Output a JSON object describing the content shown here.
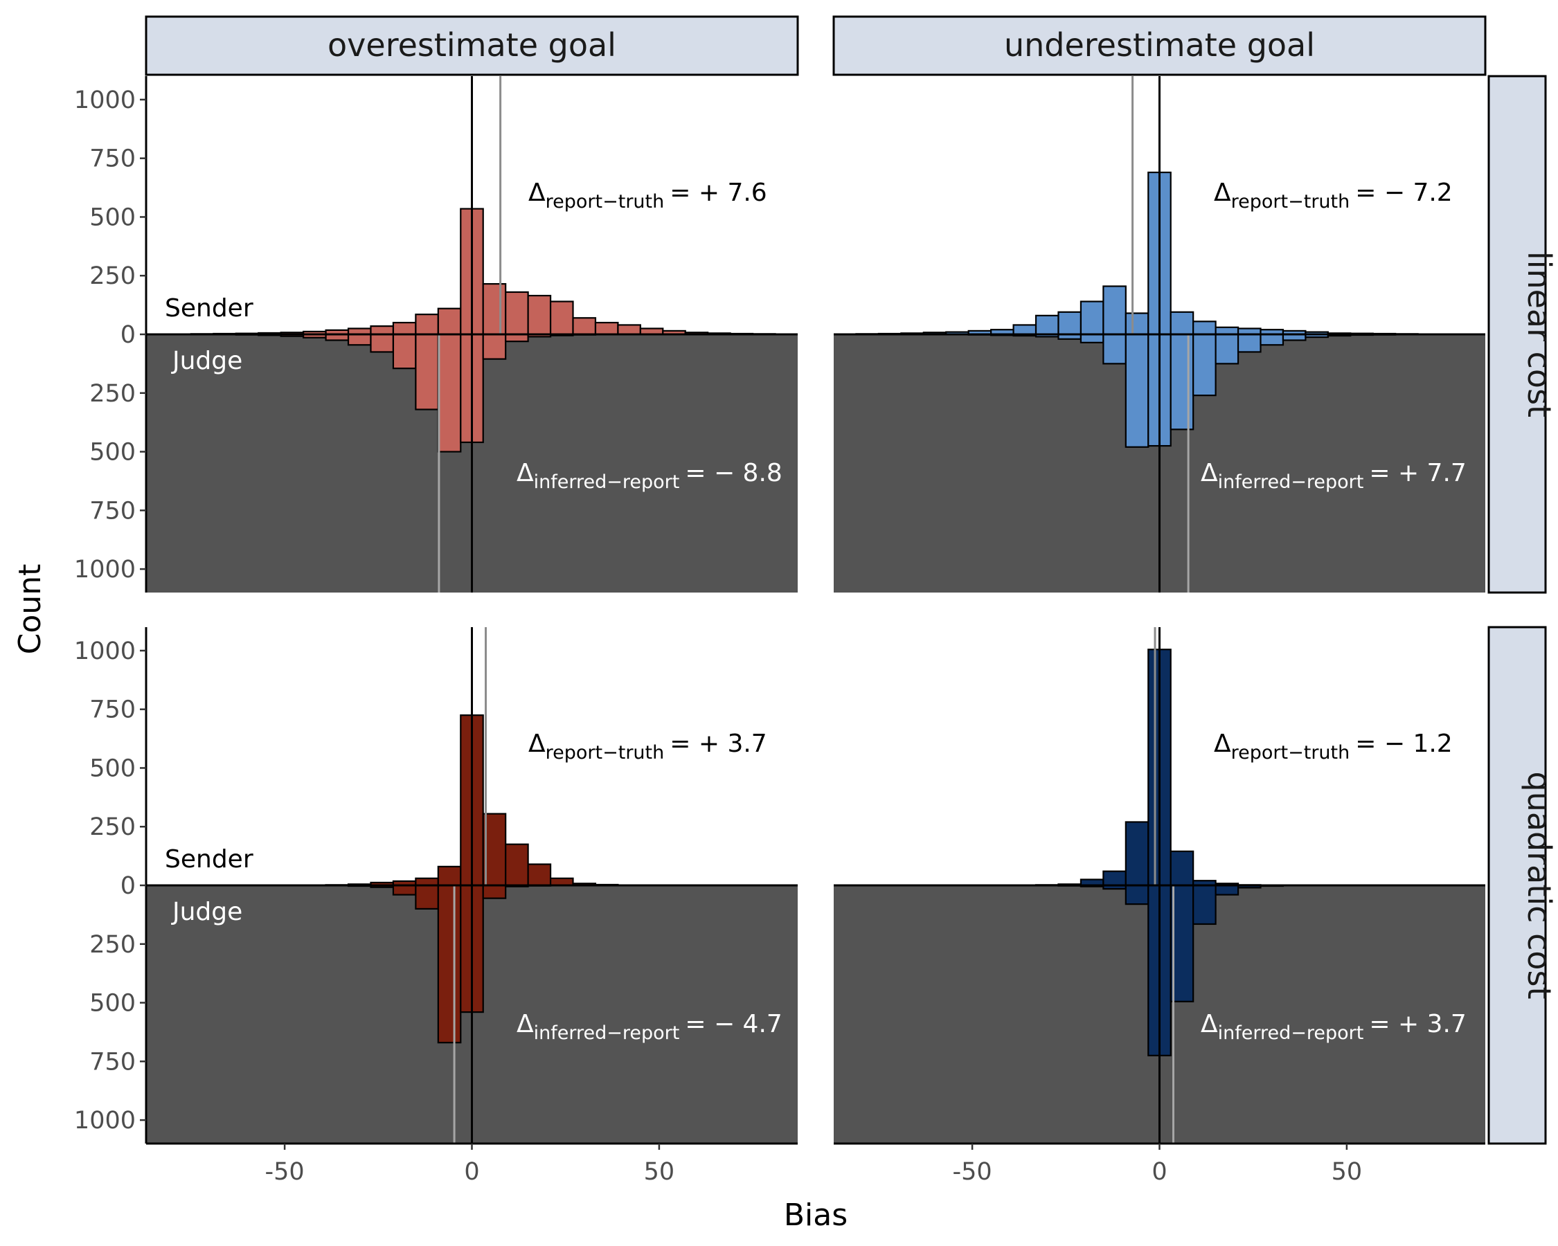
{
  "chart_data": {
    "type": "bar",
    "xlabel": "Bias",
    "ylabel": "Count",
    "xlim": [
      -87,
      87
    ],
    "ylim": [
      -1100,
      1100
    ],
    "x_ticks": [
      -50,
      0,
      50
    ],
    "x_tick_labels": [
      "-50",
      "0",
      "50"
    ],
    "y_ticks": [
      1000,
      750,
      500,
      250,
      0,
      -250,
      -500,
      -750,
      -1000
    ],
    "y_tick_labels": [
      "1000",
      "750",
      "500",
      "250",
      "0",
      "250",
      "500",
      "750",
      "1000"
    ],
    "bin_centers": [
      -78,
      -72,
      -66,
      -60,
      -54,
      -48,
      -42,
      -36,
      -30,
      -24,
      -18,
      -12,
      -6,
      0,
      6,
      12,
      18,
      24,
      30,
      36,
      42,
      48,
      54,
      60,
      66,
      72,
      78
    ],
    "col_labels": [
      "overestimate goal",
      "underestimate goal"
    ],
    "row_labels": [
      "linear cost",
      "quadratic cost"
    ],
    "sender_label": "Sender",
    "judge_label": "Judge",
    "legend": "none",
    "grid": false,
    "panels": [
      {
        "col": "overestimate goal",
        "row": "linear cost",
        "color": "#c4635a",
        "sender": [
          1,
          2,
          3,
          4,
          6,
          8,
          12,
          18,
          25,
          35,
          50,
          85,
          110,
          535,
          215,
          180,
          165,
          140,
          70,
          50,
          40,
          25,
          15,
          8,
          5,
          3,
          2
        ],
        "judge": [
          0,
          0,
          1,
          2,
          4,
          8,
          14,
          25,
          45,
          75,
          145,
          320,
          500,
          460,
          105,
          30,
          10,
          5,
          2,
          1,
          0,
          0,
          0,
          0,
          0,
          0,
          0
        ],
        "report_truth_line": 7.6,
        "inferred_report_line": -8.8,
        "sender_annot": {
          "delta": "Δ",
          "sub": "report−truth",
          "value": "= + 7.6"
        },
        "judge_annot": {
          "delta": "Δ",
          "sub": "inferred−report",
          "value": "= − 8.8"
        }
      },
      {
        "col": "underestimate goal",
        "row": "linear cost",
        "color": "#5b8fcb",
        "sender": [
          2,
          3,
          5,
          8,
          10,
          15,
          20,
          40,
          80,
          95,
          140,
          205,
          90,
          690,
          95,
          55,
          30,
          25,
          20,
          15,
          10,
          5,
          4,
          3,
          2,
          1,
          1
        ],
        "judge": [
          0,
          0,
          0,
          0,
          1,
          2,
          4,
          6,
          10,
          20,
          35,
          125,
          480,
          475,
          405,
          260,
          125,
          75,
          45,
          25,
          12,
          6,
          3,
          2,
          1,
          0,
          0
        ],
        "report_truth_line": -7.2,
        "inferred_report_line": 7.7,
        "sender_annot": {
          "delta": "Δ",
          "sub": "report−truth",
          "value": "= − 7.2"
        },
        "judge_annot": {
          "delta": "Δ",
          "sub": "inferred−report",
          "value": "= + 7.7"
        }
      },
      {
        "col": "overestimate goal",
        "row": "quadratic cost",
        "color": "#7a1f0e",
        "sender": [
          0,
          0,
          0,
          0,
          0,
          0,
          1,
          2,
          5,
          12,
          18,
          30,
          80,
          725,
          305,
          175,
          90,
          30,
          8,
          3,
          1,
          0,
          0,
          0,
          0,
          0,
          0
        ],
        "judge": [
          0,
          0,
          0,
          0,
          0,
          0,
          0,
          1,
          3,
          8,
          40,
          100,
          670,
          540,
          55,
          5,
          2,
          1,
          0,
          0,
          0,
          0,
          0,
          0,
          0,
          0,
          0
        ],
        "report_truth_line": 3.7,
        "inferred_report_line": -4.7,
        "sender_annot": {
          "delta": "Δ",
          "sub": "report−truth",
          "value": "= + 3.7"
        },
        "judge_annot": {
          "delta": "Δ",
          "sub": "inferred−report",
          "value": "= − 4.7"
        }
      },
      {
        "col": "underestimate goal",
        "row": "quadratic cost",
        "color": "#0b2d5e",
        "sender": [
          0,
          0,
          0,
          0,
          0,
          0,
          0,
          0,
          2,
          5,
          25,
          60,
          270,
          1005,
          145,
          20,
          8,
          2,
          1,
          0,
          0,
          0,
          0,
          0,
          0,
          0,
          0
        ],
        "judge": [
          0,
          0,
          0,
          0,
          0,
          0,
          0,
          0,
          1,
          2,
          5,
          15,
          80,
          725,
          495,
          165,
          40,
          10,
          3,
          1,
          0,
          0,
          0,
          0,
          0,
          0,
          0
        ],
        "report_truth_line": -1.2,
        "inferred_report_line": 3.7,
        "sender_annot": {
          "delta": "Δ",
          "sub": "report−truth",
          "value": "= − 1.2"
        },
        "judge_annot": {
          "delta": "Δ",
          "sub": "inferred−report",
          "value": "= + 3.7"
        }
      }
    ]
  }
}
